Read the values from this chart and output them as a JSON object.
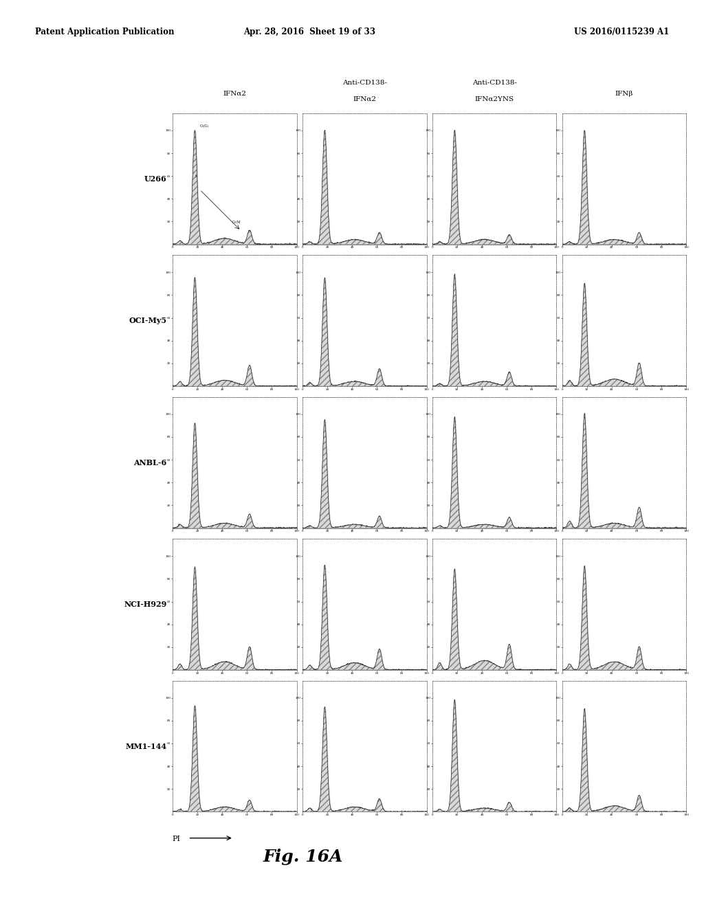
{
  "header_left": "Patent Application Publication",
  "header_mid": "Apr. 28, 2016  Sheet 19 of 33",
  "header_right": "US 2016/0115239 A1",
  "col_labels_line1": [
    "",
    "Anti-CD138-",
    "Anti-CD138-",
    ""
  ],
  "col_labels_line2": [
    "IFNα2",
    "IFNα2",
    "IFNα2YNS",
    "IFNβ"
  ],
  "row_labels": [
    "U266",
    "OCI-My5",
    "ANBL-6",
    "NCI-H929",
    "MM1-144"
  ],
  "fig_label": "Fig. 16A",
  "pi_label": "PI",
  "background": "#ffffff"
}
